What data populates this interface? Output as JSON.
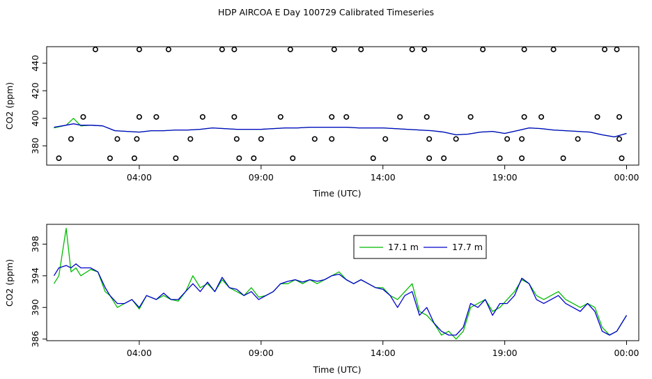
{
  "title": "HDP AIRCOA E  Day 100729  Calibrated Timeseries",
  "colors": {
    "series1": "#00bb00",
    "series2": "#0000cc",
    "axis": "#000000"
  },
  "chart_data": [
    {
      "type": "line",
      "panel": "top",
      "xlabel": "Time (UTC)",
      "ylabel": "CO2 (ppm)",
      "x_unit": "hours (UTC)",
      "xlim": [
        0.2,
        24.5
      ],
      "ylim": [
        366,
        452
      ],
      "xticks": [
        4,
        9,
        14,
        19,
        24
      ],
      "xtick_labels": [
        "04:00",
        "09:00",
        "14:00",
        "19:00",
        "00:00"
      ],
      "yticks": [
        380,
        400,
        420,
        440
      ],
      "ytick_labels": [
        "380",
        "400",
        "420",
        "440"
      ],
      "series": [
        {
          "x": [
            0.5,
            1.0,
            1.3,
            1.6,
            2.0,
            2.5,
            3.0,
            3.5,
            4.0,
            4.5,
            5.0,
            5.5,
            6.0,
            6.5,
            7.0,
            7.5,
            8.0,
            8.5,
            9.0,
            9.5,
            10.0,
            10.5,
            11.0,
            11.5,
            12.0,
            12.5,
            13.0,
            13.5,
            14.0,
            14.5,
            15.0,
            15.5,
            16.0,
            16.5,
            17.0,
            17.5,
            18.0,
            18.5,
            19.0,
            19.5,
            20.0,
            20.5,
            21.0,
            21.5,
            22.0,
            22.5,
            23.0,
            23.5,
            24.0
          ],
          "y": [
            393.0,
            395.0,
            400.0,
            394.5,
            395.0,
            394.5,
            391.0,
            390.5,
            390.0,
            391.0,
            391.0,
            391.5,
            391.5,
            392.0,
            393.0,
            392.5,
            392.0,
            392.0,
            392.0,
            392.5,
            393.0,
            393.0,
            393.5,
            393.5,
            393.5,
            393.5,
            393.0,
            393.0,
            393.0,
            392.5,
            392.0,
            391.5,
            391.0,
            390.0,
            388.0,
            388.5,
            390.0,
            390.5,
            389.0,
            391.0,
            393.0,
            392.5,
            391.5,
            391.0,
            390.5,
            390.0,
            388.0,
            386.5,
            389.0
          ]
        },
        {
          "x": [
            0.5,
            1.0,
            1.3,
            1.6,
            2.0,
            2.5,
            3.0,
            3.5,
            4.0,
            4.5,
            5.0,
            5.5,
            6.0,
            6.5,
            7.0,
            7.5,
            8.0,
            8.5,
            9.0,
            9.5,
            10.0,
            10.5,
            11.0,
            11.5,
            12.0,
            12.5,
            13.0,
            13.5,
            14.0,
            14.5,
            15.0,
            15.5,
            16.0,
            16.5,
            17.0,
            17.5,
            18.0,
            18.5,
            19.0,
            19.5,
            20.0,
            20.5,
            21.0,
            21.5,
            22.0,
            22.5,
            23.0,
            23.5,
            24.0
          ],
          "y": [
            393.5,
            395.0,
            396.0,
            395.0,
            395.0,
            394.5,
            391.0,
            390.5,
            390.0,
            391.0,
            391.0,
            391.5,
            391.5,
            392.0,
            393.0,
            392.5,
            392.0,
            392.0,
            392.0,
            392.5,
            393.0,
            393.0,
            393.5,
            393.5,
            393.5,
            393.5,
            393.0,
            393.0,
            393.0,
            392.5,
            392.0,
            391.5,
            391.0,
            390.0,
            388.0,
            388.5,
            390.0,
            390.5,
            389.0,
            391.0,
            393.0,
            392.5,
            391.5,
            391.0,
            390.5,
            390.0,
            388.0,
            386.5,
            389.0
          ]
        }
      ],
      "markers": {
        "shape": "open-circle",
        "rows": [
          {
            "y": 450,
            "x": [
              2.2,
              4.0,
              5.2,
              7.4,
              7.9,
              10.2,
              12.0,
              13.1,
              15.2,
              15.7,
              18.1,
              19.8,
              21.0,
              23.1,
              23.6
            ]
          },
          {
            "y": 401,
            "x": [
              1.7,
              4.0,
              4.7,
              6.6,
              7.9,
              9.8,
              11.9,
              12.5,
              14.7,
              15.8,
              17.6,
              19.8,
              20.5,
              22.8,
              23.7
            ]
          },
          {
            "y": 385,
            "x": [
              1.2,
              3.1,
              3.9,
              6.1,
              8.0,
              9.0,
              11.2,
              11.9,
              14.1,
              15.9,
              17.0,
              19.1,
              19.7,
              22.0,
              23.7
            ]
          },
          {
            "y": 371,
            "x": [
              0.7,
              2.8,
              3.8,
              5.5,
              8.1,
              8.7,
              10.3,
              13.6,
              15.9,
              16.5,
              18.8,
              19.7,
              21.4,
              23.8
            ]
          }
        ]
      }
    },
    {
      "type": "line",
      "panel": "bottom",
      "xlabel": "Time (UTC)",
      "ylabel": "CO2 (ppm)",
      "x_unit": "hours (UTC)",
      "xlim": [
        0.2,
        24.5
      ],
      "ylim": [
        385.8,
        400.5
      ],
      "xticks": [
        4,
        9,
        14,
        19,
        24
      ],
      "xtick_labels": [
        "04:00",
        "09:00",
        "14:00",
        "19:00",
        "00:00"
      ],
      "yticks": [
        386,
        390,
        394,
        398
      ],
      "ytick_labels": [
        "386",
        "390",
        "394",
        "398"
      ],
      "legend": "top-center",
      "series": [
        {
          "name": "17.1 m",
          "x": [
            0.5,
            0.7,
            1.0,
            1.2,
            1.4,
            1.6,
            2.0,
            2.3,
            2.6,
            2.8,
            3.1,
            3.4,
            3.7,
            4.0,
            4.3,
            4.7,
            5.0,
            5.3,
            5.6,
            5.9,
            6.2,
            6.5,
            6.8,
            7.1,
            7.4,
            7.7,
            8.0,
            8.3,
            8.6,
            8.9,
            9.2,
            9.5,
            9.8,
            10.1,
            10.4,
            10.7,
            11.0,
            11.3,
            11.6,
            11.9,
            12.2,
            12.5,
            12.8,
            13.1,
            13.4,
            13.7,
            14.0,
            14.3,
            14.6,
            14.9,
            15.2,
            15.5,
            15.8,
            16.1,
            16.4,
            16.7,
            17.0,
            17.3,
            17.6,
            17.9,
            18.2,
            18.5,
            18.8,
            19.1,
            19.4,
            19.7,
            20.0,
            20.3,
            20.6,
            20.9,
            21.2,
            21.5,
            21.8,
            22.1,
            22.4,
            22.7,
            23.0,
            23.3,
            23.6,
            24.0
          ],
          "y": [
            393.0,
            394.0,
            400.0,
            394.5,
            395.0,
            394.0,
            394.8,
            394.5,
            392.0,
            391.5,
            390.0,
            390.5,
            391.0,
            389.8,
            391.5,
            391.0,
            391.5,
            391.0,
            390.8,
            392.0,
            394.0,
            392.5,
            393.0,
            392.0,
            393.5,
            392.5,
            392.0,
            391.5,
            392.5,
            391.3,
            391.5,
            392.0,
            393.0,
            393.0,
            393.5,
            393.0,
            393.5,
            393.0,
            393.5,
            394.0,
            394.5,
            393.5,
            393.0,
            393.5,
            393.0,
            392.5,
            392.5,
            391.5,
            391.0,
            392.0,
            393.0,
            389.5,
            389.0,
            388.0,
            386.5,
            387.0,
            386.0,
            387.0,
            390.0,
            390.5,
            391.0,
            389.5,
            390.0,
            391.0,
            392.0,
            393.5,
            393.0,
            391.5,
            391.0,
            391.5,
            392.0,
            391.0,
            390.5,
            390.0,
            390.5,
            390.0,
            387.5,
            386.5,
            387.0,
            389.0
          ]
        },
        {
          "name": "17.7 m",
          "x": [
            0.5,
            0.7,
            1.0,
            1.2,
            1.4,
            1.6,
            2.0,
            2.3,
            2.6,
            2.8,
            3.1,
            3.4,
            3.7,
            4.0,
            4.3,
            4.7,
            5.0,
            5.3,
            5.6,
            5.9,
            6.2,
            6.5,
            6.8,
            7.1,
            7.4,
            7.7,
            8.0,
            8.3,
            8.6,
            8.9,
            9.2,
            9.5,
            9.8,
            10.1,
            10.4,
            10.7,
            11.0,
            11.3,
            11.6,
            11.9,
            12.2,
            12.5,
            12.8,
            13.1,
            13.4,
            13.7,
            14.0,
            14.3,
            14.6,
            14.9,
            15.2,
            15.5,
            15.8,
            16.1,
            16.4,
            16.7,
            17.0,
            17.3,
            17.6,
            17.9,
            18.2,
            18.5,
            18.8,
            19.1,
            19.4,
            19.7,
            20.0,
            20.3,
            20.6,
            20.9,
            21.2,
            21.5,
            21.8,
            22.1,
            22.4,
            22.7,
            23.0,
            23.3,
            23.6,
            24.0
          ],
          "y": [
            394.0,
            395.0,
            395.3,
            395.0,
            395.5,
            395.0,
            395.0,
            394.5,
            392.5,
            391.5,
            390.5,
            390.5,
            391.0,
            390.0,
            391.5,
            391.0,
            391.8,
            391.0,
            391.0,
            392.0,
            393.0,
            392.0,
            393.2,
            392.0,
            393.8,
            392.5,
            392.3,
            391.5,
            392.0,
            391.0,
            391.5,
            392.0,
            393.0,
            393.3,
            393.5,
            393.2,
            393.5,
            393.3,
            393.5,
            394.0,
            394.2,
            393.5,
            393.0,
            393.5,
            393.0,
            392.5,
            392.3,
            391.5,
            390.0,
            391.5,
            392.0,
            389.0,
            390.0,
            388.0,
            387.0,
            386.5,
            386.5,
            387.5,
            390.5,
            390.0,
            391.0,
            389.0,
            390.5,
            390.5,
            391.5,
            393.7,
            393.0,
            391.0,
            390.5,
            391.0,
            391.5,
            390.5,
            390.0,
            389.5,
            390.5,
            389.5,
            387.0,
            386.5,
            387.0,
            389.0
          ]
        }
      ]
    }
  ]
}
